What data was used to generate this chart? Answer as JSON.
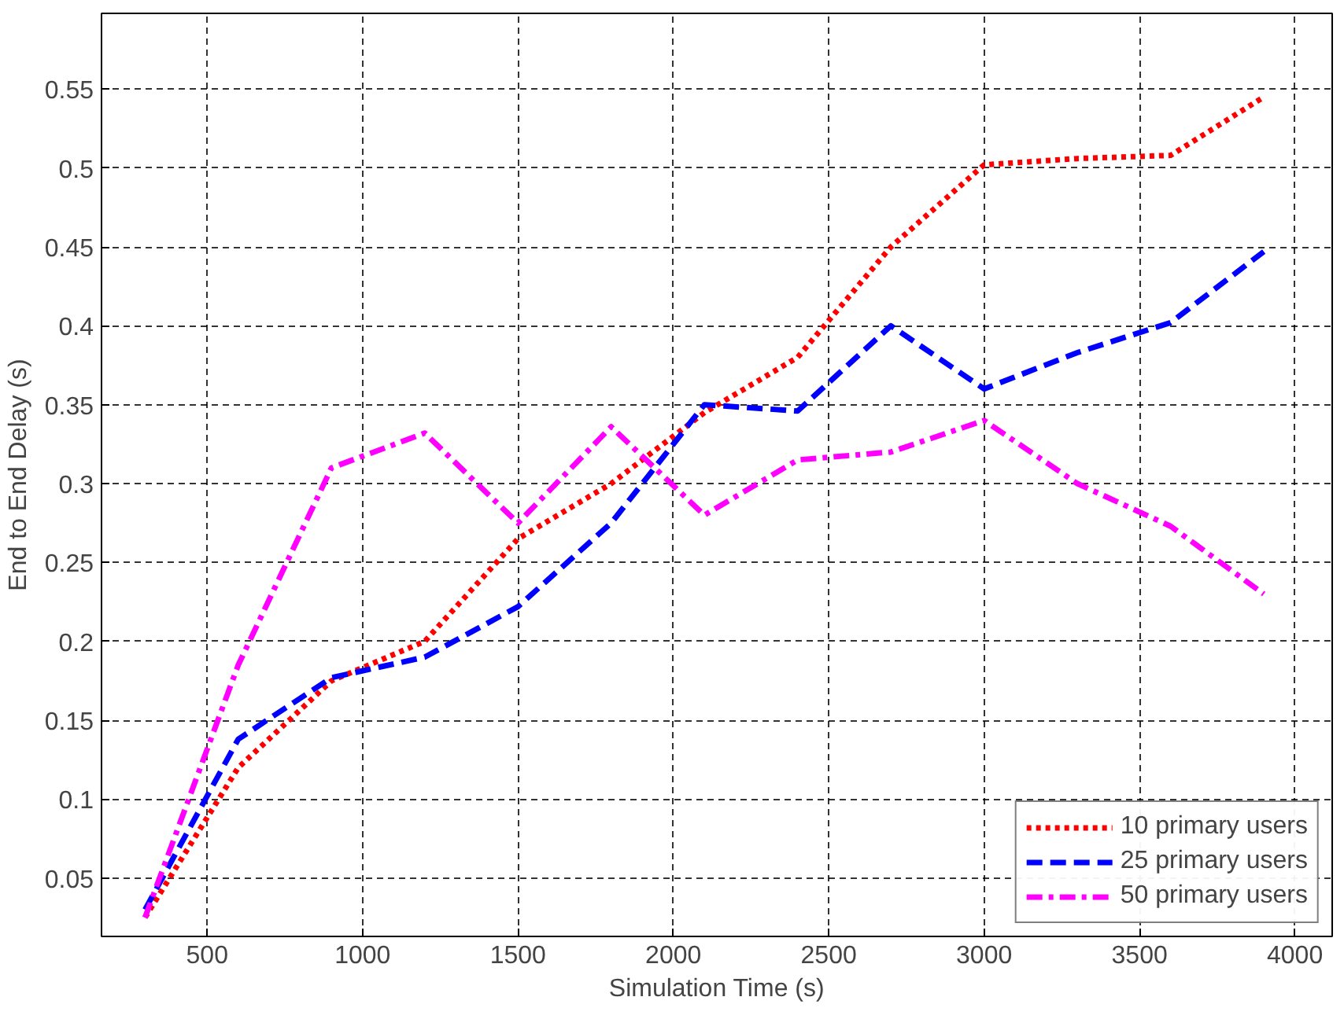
{
  "chart_data": {
    "type": "line",
    "xlabel": "Simulation Time (s)",
    "ylabel": "End to End Delay (s)",
    "x": [
      300,
      600,
      900,
      1200,
      1500,
      1800,
      2100,
      2400,
      2700,
      3000,
      3300,
      3600,
      3900
    ],
    "series": [
      {
        "name": "10 primary users",
        "color": "#ff0000",
        "line_style": "dotted",
        "values": [
          0.025,
          0.12,
          0.175,
          0.2,
          0.265,
          0.3,
          0.345,
          0.38,
          0.45,
          0.502,
          0.506,
          0.508,
          0.545
        ]
      },
      {
        "name": "25 primary users",
        "color": "#0000ff",
        "line_style": "dashed",
        "values": [
          0.03,
          0.138,
          0.177,
          0.19,
          0.222,
          0.275,
          0.35,
          0.346,
          0.4,
          0.36,
          0.383,
          0.402,
          0.447
        ]
      },
      {
        "name": "50 primary users",
        "color": "#ff00ff",
        "line_style": "dashdot",
        "values": [
          0.025,
          0.185,
          0.31,
          0.332,
          0.275,
          0.336,
          0.28,
          0.315,
          0.32,
          0.34,
          0.3,
          0.273,
          0.23
        ]
      }
    ],
    "xlim": [
      160,
      4120
    ],
    "ylim": [
      0.013,
      0.598
    ],
    "xticks": [
      500,
      1000,
      1500,
      2000,
      2500,
      3000,
      3500,
      4000
    ],
    "yticks": [
      0.05,
      0.1,
      0.15,
      0.2,
      0.25,
      0.3,
      0.35,
      0.4,
      0.45,
      0.5,
      0.55
    ],
    "grid": true,
    "legend": "bottom right",
    "marker": "none"
  }
}
